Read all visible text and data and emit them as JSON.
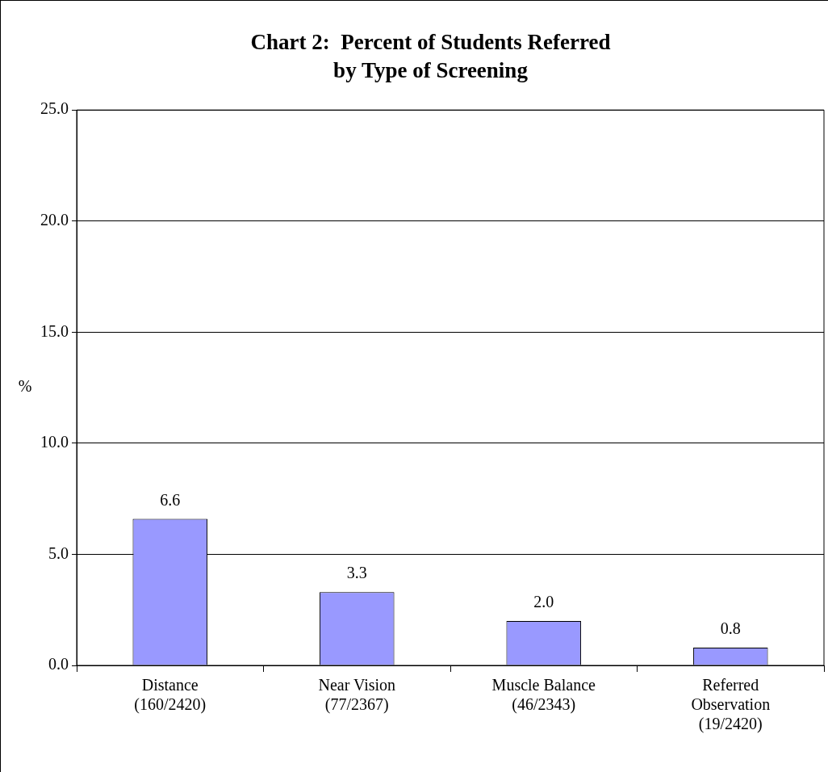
{
  "chart_data": {
    "type": "bar",
    "title": "Chart 2:  Percent of Students Referred\nby Type of Screening",
    "ylabel": "%",
    "categories": [
      "Distance\n(160/2420)",
      "Near Vision\n(77/2367)",
      "Muscle Balance\n(46/2343)",
      "Referred\nObservation\n(19/2420)"
    ],
    "values": [
      6.6,
      3.3,
      2.0,
      0.8
    ],
    "value_labels": [
      "6.6",
      "3.3",
      "2.0",
      "0.8"
    ],
    "color": "#9999ff",
    "ylim": [
      0,
      25
    ],
    "yticks": [
      {
        "value": 0,
        "label": "0.0"
      },
      {
        "value": 5,
        "label": "5.0"
      },
      {
        "value": 10,
        "label": "10.0"
      },
      {
        "value": 15,
        "label": "15.0"
      },
      {
        "value": 20,
        "label": "20.0"
      },
      {
        "value": 25,
        "label": "25.0"
      }
    ],
    "grid": "y",
    "legend": false
  }
}
